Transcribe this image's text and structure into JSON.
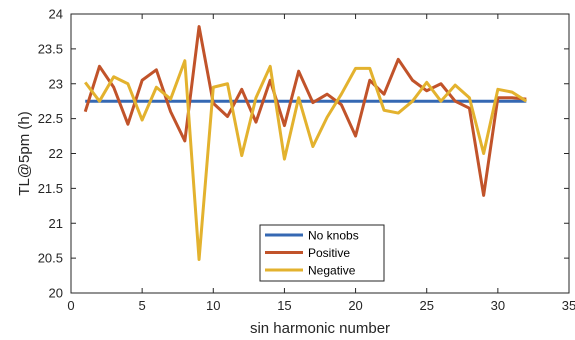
{
  "chart_data": {
    "type": "line",
    "xlabel": "sin harmonic number",
    "ylabel": "TL@5pm (h)",
    "xlim": [
      0,
      35
    ],
    "ylim": [
      20,
      24
    ],
    "x_ticks": [
      0,
      5,
      10,
      15,
      20,
      25,
      30,
      35
    ],
    "y_ticks": [
      20,
      20.5,
      21,
      21.5,
      22,
      22.5,
      23,
      23.5,
      24
    ],
    "grid": false,
    "legend_position": "bottom-center",
    "series": [
      {
        "name": "No knobs",
        "color": "#3568b3",
        "x": [
          1,
          32
        ],
        "y": [
          22.75,
          22.75
        ]
      },
      {
        "name": "Positive",
        "color": "#c1532a",
        "x": [
          1,
          2,
          3,
          4,
          5,
          6,
          7,
          8,
          9,
          10,
          11,
          12,
          13,
          14,
          15,
          16,
          17,
          18,
          19,
          20,
          21,
          22,
          23,
          24,
          25,
          26,
          27,
          28,
          29,
          30,
          31,
          32
        ],
        "y": [
          22.6,
          23.25,
          22.95,
          22.42,
          23.05,
          23.2,
          22.6,
          22.18,
          23.82,
          22.72,
          22.53,
          22.92,
          22.45,
          23.05,
          22.4,
          23.18,
          22.73,
          22.85,
          22.7,
          22.25,
          23.05,
          22.85,
          23.35,
          23.05,
          22.9,
          23.0,
          22.75,
          22.65,
          21.4,
          22.8,
          22.8,
          22.78
        ]
      },
      {
        "name": "Negative",
        "color": "#e3b22e",
        "x": [
          1,
          2,
          3,
          4,
          5,
          6,
          7,
          8,
          9,
          10,
          11,
          12,
          13,
          14,
          15,
          16,
          17,
          18,
          19,
          20,
          21,
          22,
          23,
          24,
          25,
          26,
          27,
          28,
          29,
          30,
          31,
          32
        ],
        "y": [
          23.02,
          22.75,
          23.1,
          23.0,
          22.48,
          22.95,
          22.78,
          23.33,
          20.48,
          22.95,
          23.0,
          21.97,
          22.8,
          23.25,
          21.92,
          22.8,
          22.1,
          22.52,
          22.85,
          23.22,
          23.22,
          22.62,
          22.58,
          22.75,
          23.02,
          22.75,
          22.98,
          22.8,
          22.0,
          22.92,
          22.88,
          22.75
        ]
      }
    ]
  }
}
